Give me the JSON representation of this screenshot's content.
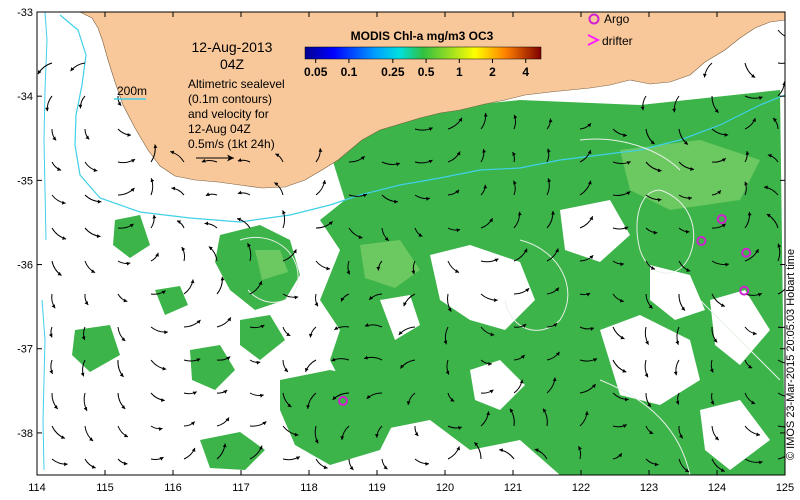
{
  "map": {
    "date_line1": "12-Aug-2013",
    "date_line2": "04Z",
    "contour_label": "200m",
    "info_lines": [
      "Altimetric sealevel",
      "(0.1m contours)",
      "and velocity for",
      "12-Aug 04Z",
      "0.5m/s (1kt 24h)"
    ],
    "credit": "© IMOS 23-Mar-2015 20:05:03 Hobart time"
  },
  "colorbar": {
    "title": "MODIS Chl-a mg/m3 OC3",
    "ticks": [
      "0.05",
      "0.1",
      "0.25",
      "0.5",
      "1",
      "2",
      "4"
    ]
  },
  "legend": {
    "argo_label": "Argo",
    "drifter_label": "drifter",
    "argo_color": "#d020d0",
    "drifter_color": "#ff20ff"
  },
  "axes": {
    "x_ticks": [
      "114",
      "115",
      "116",
      "117",
      "118",
      "119",
      "120",
      "121",
      "122",
      "123",
      "124",
      "125"
    ],
    "y_ticks": [
      "-33",
      "-34",
      "-35",
      "-36",
      "-37",
      "-38"
    ],
    "x_range": [
      114,
      125
    ],
    "y_range": [
      -38.5,
      -33
    ]
  },
  "colors": {
    "land": "#f8c89a",
    "ocean": "#ffffff",
    "chl": "#3cb44a",
    "chl_light": "#6cc860",
    "isobath": "#40d0e8"
  },
  "argo_floats": [
    {
      "lon": 118.5,
      "lat": -37.62
    },
    {
      "lon": 123.77,
      "lat": -35.72
    },
    {
      "lon": 124.07,
      "lat": -35.46
    },
    {
      "lon": 124.43,
      "lat": -35.86
    },
    {
      "lon": 124.4,
      "lat": -36.31
    }
  ]
}
